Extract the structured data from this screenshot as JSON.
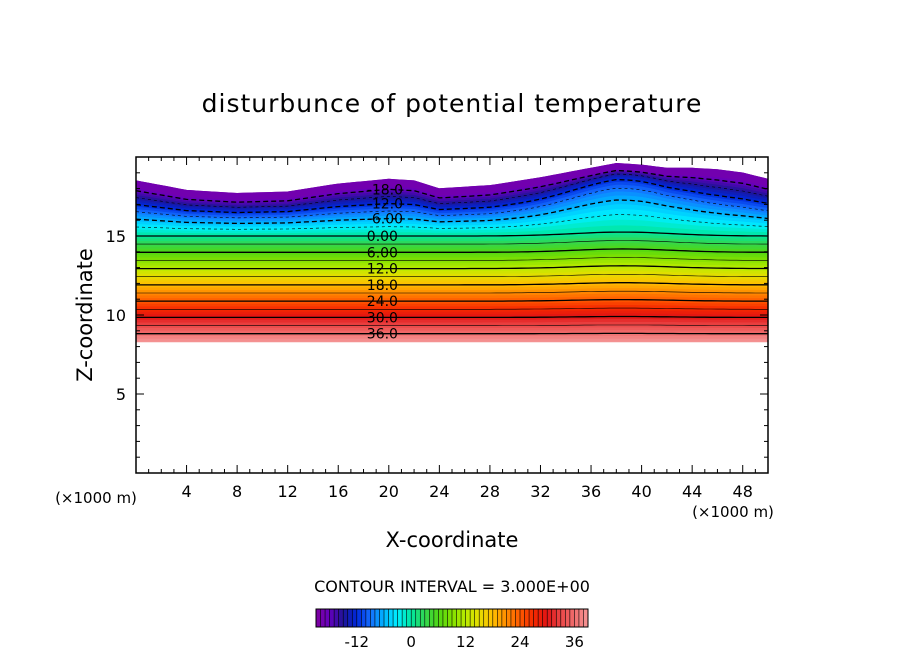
{
  "chart_data": {
    "type": "contour",
    "title": "disturbunce of potential temperature",
    "xlabel": "X-coordinate",
    "ylabel": "Z-coordinate",
    "x_unit": "(×1000 m)",
    "y_unit": "(×1000 m)",
    "xlim": [
      0,
      50
    ],
    "ylim": [
      0,
      20
    ],
    "x_ticks": [
      4,
      8,
      12,
      16,
      20,
      24,
      28,
      32,
      36,
      40,
      44,
      48
    ],
    "y_ticks": [
      5,
      10,
      15
    ],
    "contour_interval_text": "CONTOUR INTERVAL = 3.000E+00",
    "contour_interval": 3.0,
    "field_bottom_z": 8.3,
    "top_boundary": {
      "x": [
        0,
        4,
        8,
        12,
        16,
        20,
        22,
        24,
        28,
        32,
        36,
        38,
        40,
        42,
        44,
        46,
        48,
        50
      ],
      "z": [
        18.5,
        17.9,
        17.7,
        17.8,
        18.3,
        18.6,
        18.5,
        18.0,
        18.2,
        18.7,
        19.3,
        19.6,
        19.5,
        19.3,
        19.3,
        19.2,
        19.0,
        18.6
      ]
    },
    "contour_levels": [
      {
        "value": -18,
        "label": "-18.0",
        "dashed": true
      },
      {
        "value": -12,
        "label": "-12.0",
        "dashed": true
      },
      {
        "value": -6,
        "label": "-6.00",
        "dashed": true
      },
      {
        "value": 0,
        "label": "0.00",
        "dashed": false
      },
      {
        "value": 6,
        "label": "6.00",
        "dashed": false
      },
      {
        "value": 12,
        "label": "12.0",
        "dashed": false
      },
      {
        "value": 18,
        "label": "18.0",
        "dashed": false
      },
      {
        "value": 24,
        "label": "24.0",
        "dashed": false
      },
      {
        "value": 30,
        "label": "30.0",
        "dashed": false
      },
      {
        "value": 36,
        "label": "36.0",
        "dashed": false
      }
    ],
    "contour_label_x": 20,
    "colorbar": {
      "range": [
        -21,
        39
      ],
      "ticks": [
        -12,
        0,
        12,
        24,
        36
      ],
      "tick_labels": [
        "-12",
        "0",
        "12",
        "24",
        "36"
      ]
    },
    "grid": false
  }
}
